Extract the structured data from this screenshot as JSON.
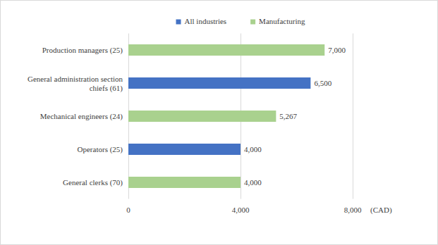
{
  "chart_data": {
    "type": "bar",
    "orientation": "horizontal",
    "categories": [
      "Production managers (25)",
      "General administration section chiefs (61)",
      "Mechanical engineers (24)",
      "Operators (25)",
      "General clerks (70)"
    ],
    "series": [
      {
        "name": "All industries",
        "color": "#4472c4",
        "values": [
          null,
          6500,
          null,
          4000,
          null
        ],
        "value_labels": [
          null,
          "6,500",
          null,
          "4,000",
          null
        ]
      },
      {
        "name": "Manufacturing",
        "color": "#a9d18e",
        "values": [
          7000,
          null,
          5267,
          null,
          4000
        ],
        "value_labels": [
          "7,000",
          null,
          "5,267",
          null,
          "4,000"
        ]
      }
    ],
    "x_label": "(CAD)",
    "xlim": [
      0,
      8000
    ],
    "xticks": [
      0,
      {
        "value": 4000,
        "label": "4,000"
      },
      {
        "value": 8000,
        "label": "8,000"
      }
    ],
    "grid": true,
    "legend": "top",
    "data_labels": true
  }
}
